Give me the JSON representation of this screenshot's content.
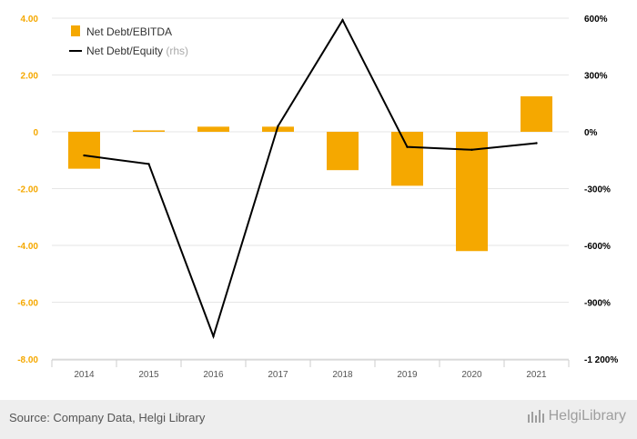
{
  "chart_data": {
    "type": "bar+line",
    "categories": [
      "2014",
      "2015",
      "2016",
      "2017",
      "2018",
      "2019",
      "2020",
      "2021"
    ],
    "series": [
      {
        "name": "Net Debt/EBITDA",
        "type": "bar",
        "axis": "left",
        "color": "#f5a800",
        "values": [
          -1.3,
          0.05,
          0.18,
          0.18,
          -1.35,
          -1.9,
          -4.2,
          1.25
        ]
      },
      {
        "name": "Net Debt/Equity",
        "type": "line",
        "axis": "right",
        "color": "#000000",
        "values": [
          -125,
          -170,
          -1080,
          30,
          590,
          -80,
          -95,
          -60
        ]
      }
    ],
    "left_axis": {
      "ylim": [
        -8,
        4
      ],
      "ticks": [
        4,
        2,
        0,
        -2,
        -4,
        -6,
        -8
      ],
      "tick_labels": [
        "4.00",
        "2.00",
        "0",
        "-2.00",
        "-4.00",
        "-6.00",
        "-8.00"
      ],
      "color": "#f5a800"
    },
    "right_axis": {
      "ylim": [
        -1200,
        600
      ],
      "ticks": [
        600,
        300,
        0,
        -300,
        -600,
        -900,
        -1200
      ],
      "tick_labels": [
        "600%",
        "300%",
        "0%",
        "-300%",
        "-600%",
        "-900%",
        "-1 200%"
      ],
      "color": "#000000"
    },
    "legend": {
      "placement": "top-left",
      "items": [
        {
          "label": "Net Debt/EBITDA",
          "suffix": ""
        },
        {
          "label": "Net Debt/Equity",
          "suffix": "(rhs)"
        }
      ]
    },
    "grid": true
  },
  "footer": {
    "source": "Source: Company Data, Helgi Library",
    "brand": "HelgiLibrary",
    "brand_icon": "helgi-logo-icon"
  }
}
